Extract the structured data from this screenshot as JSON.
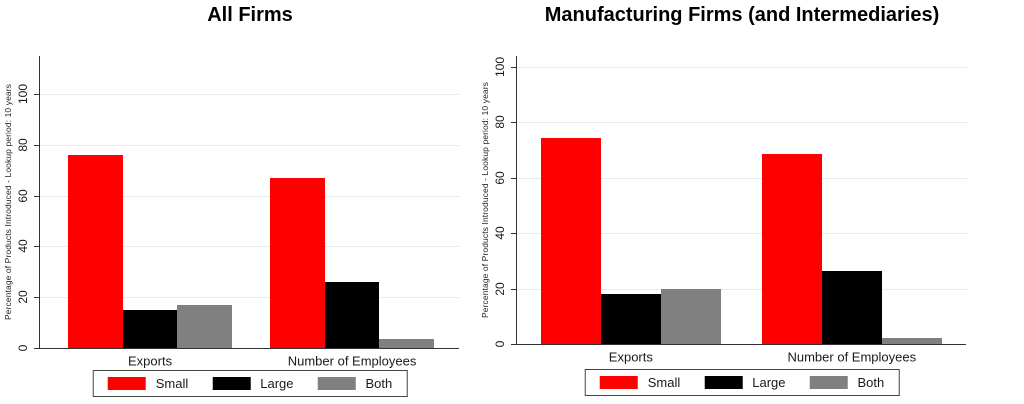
{
  "chart_data": [
    {
      "type": "bar",
      "title": "All Firms",
      "ylabel": "Percentage of Products Introduced - Lookup period: 10 years",
      "xlabel": "",
      "categories": [
        "Exports",
        "Number of Employees"
      ],
      "series": [
        {
          "name": "Small",
          "color": "#ff0000",
          "values": [
            76,
            67
          ]
        },
        {
          "name": "Large",
          "color": "#000000",
          "values": [
            15,
            26
          ]
        },
        {
          "name": "Both",
          "color": "#808080",
          "values": [
            17,
            3.5
          ]
        }
      ],
      "yticks": [
        0,
        20,
        40,
        60,
        80,
        100
      ],
      "ylim": [
        0,
        100
      ],
      "grid": true,
      "tick_label_rotation": 90,
      "legend": [
        "Small",
        "Large",
        "Both"
      ],
      "legend_position": "bottom"
    },
    {
      "type": "bar",
      "title": "Manufacturing Firms (and Intermediaries)",
      "ylabel": "Percentage of Products Introduced - Lookup period: 10 years",
      "xlabel": "",
      "categories": [
        "Exports",
        "Number of Employees"
      ],
      "series": [
        {
          "name": "Small",
          "color": "#ff0000",
          "values": [
            74.5,
            68.5
          ]
        },
        {
          "name": "Large",
          "color": "#000000",
          "values": [
            18,
            26.5
          ]
        },
        {
          "name": "Both",
          "color": "#808080",
          "values": [
            20,
            2
          ]
        }
      ],
      "yticks": [
        0,
        20,
        40,
        60,
        80,
        100
      ],
      "ylim": [
        0,
        100
      ],
      "grid": true,
      "tick_label_rotation": 90,
      "legend": [
        "Small",
        "Large",
        "Both"
      ],
      "legend_position": "bottom"
    }
  ],
  "colors": {
    "small": "#ff0000",
    "large": "#000000",
    "both": "#808080",
    "gridline": "#e3edef",
    "axis": "#333333"
  }
}
